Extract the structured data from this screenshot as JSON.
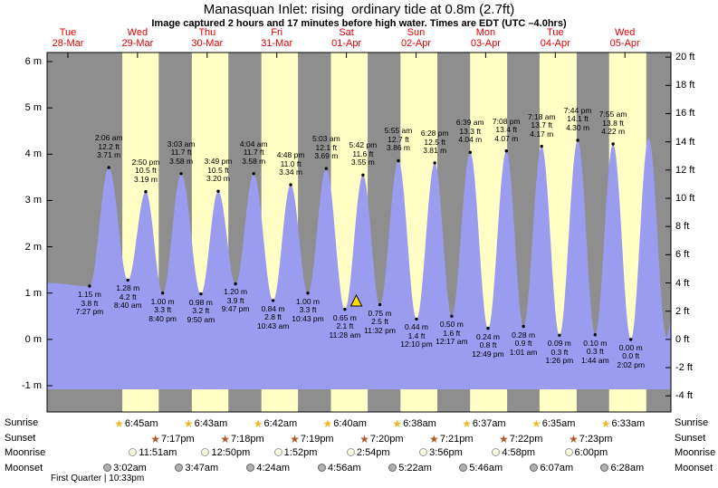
{
  "header": {
    "title": "Manasquan Inlet: rising  ordinary tide at 0.8m (2.7ft)",
    "subtitle": "Image captured 2 hours and 17 minutes before high water. Times are EDT (UTC –4.0hrs)"
  },
  "days": [
    {
      "name": "Tue",
      "date": "28-Mar"
    },
    {
      "name": "Wed",
      "date": "29-Mar"
    },
    {
      "name": "Thu",
      "date": "30-Mar"
    },
    {
      "name": "Fri",
      "date": "31-Mar"
    },
    {
      "name": "Sat",
      "date": "01-Apr"
    },
    {
      "name": "Sun",
      "date": "02-Apr"
    },
    {
      "name": "Mon",
      "date": "03-Apr"
    },
    {
      "name": "Tue",
      "date": "04-Apr"
    },
    {
      "name": "Wed",
      "date": "05-Apr"
    }
  ],
  "axes": {
    "left_ticks": [
      "6 m",
      "5 m",
      "4 m",
      "3 m",
      "2 m",
      "1 m",
      "0 m",
      "-1 m"
    ],
    "right_ticks": [
      "20 ft",
      "18 ft",
      "16 ft",
      "14 ft",
      "12 ft",
      "10 ft",
      "8 ft",
      "6 ft",
      "4 ft",
      "2 ft",
      "0 ft",
      "-2 ft",
      "-4 ft"
    ]
  },
  "chart_data": {
    "type": "area",
    "title": "Manasquan Inlet tide height curve",
    "x_unit": "days (noon-centered ticks)",
    "y_left": {
      "unit": "m",
      "ticks": [
        6,
        5,
        4,
        3,
        2,
        1,
        0,
        -1
      ]
    },
    "y_right": {
      "unit": "ft",
      "ticks": [
        20,
        18,
        16,
        14,
        12,
        10,
        8,
        6,
        4,
        2,
        0,
        -2,
        -4
      ]
    },
    "tide_events": [
      {
        "day": 0,
        "time": "7:27 pm",
        "ft": "3.8 ft",
        "m": "1.15 m",
        "type": "low"
      },
      {
        "day": 1,
        "time": "2:06 am",
        "ft": "12.2 ft",
        "m": "3.71 m",
        "type": "high"
      },
      {
        "day": 1,
        "time": "8:40 am",
        "ft": "4.2 ft",
        "m": "1.28 m",
        "type": "low"
      },
      {
        "day": 1,
        "time": "2:50 pm",
        "ft": "10.5 ft",
        "m": "3.19 m",
        "type": "high"
      },
      {
        "day": 1,
        "time": "8:40 pm",
        "ft": "3.3 ft",
        "m": "1.00 m",
        "type": "low"
      },
      {
        "day": 2,
        "time": "3:03 am",
        "ft": "11.7 ft",
        "m": "3.58 m",
        "type": "high"
      },
      {
        "day": 2,
        "time": "9:50 am",
        "ft": "3.2 ft",
        "m": "0.98 m",
        "type": "low"
      },
      {
        "day": 2,
        "time": "3:49 pm",
        "ft": "10.5 ft",
        "m": "3.20 m",
        "type": "high"
      },
      {
        "day": 2,
        "time": "9:47 pm",
        "ft": "3.9 ft",
        "m": "1.20 m",
        "type": "low"
      },
      {
        "day": 3,
        "time": "4:04 am",
        "ft": "11.7 ft",
        "m": "3.58 m",
        "type": "high"
      },
      {
        "day": 3,
        "time": "10:43 am",
        "ft": "2.8 ft",
        "m": "0.84 m",
        "type": "low"
      },
      {
        "day": 3,
        "time": "4:48 pm",
        "ft": "11.0 ft",
        "m": "3.34 m",
        "type": "high"
      },
      {
        "day": 3,
        "time": "10:43 pm",
        "ft": "3.3 ft",
        "m": "1.00 m",
        "type": "low"
      },
      {
        "day": 4,
        "time": "5:03 am",
        "ft": "12.1 ft",
        "m": "3.69 m",
        "type": "high"
      },
      {
        "day": 4,
        "time": "11:28 am",
        "ft": "2.1 ft",
        "m": "0.65 m",
        "type": "low"
      },
      {
        "day": 4,
        "time": "5:42 pm",
        "ft": "11.6 ft",
        "m": "3.55 m",
        "type": "high"
      },
      {
        "day": 4,
        "time": "11:32 pm",
        "ft": "2.5 ft",
        "m": "0.75 m",
        "type": "low"
      },
      {
        "day": 5,
        "time": "5:55 am",
        "ft": "12.7 ft",
        "m": "3.86 m",
        "type": "high"
      },
      {
        "day": 5,
        "time": "12:10 pm",
        "ft": "1.4 ft",
        "m": "0.44 m",
        "type": "low"
      },
      {
        "day": 5,
        "time": "6:28 pm",
        "ft": "12.5 ft",
        "m": "3.81 m",
        "type": "high"
      },
      {
        "day": 6,
        "time": "12:17 am",
        "ft": "1.6 ft",
        "m": "0.50 m",
        "type": "low"
      },
      {
        "day": 6,
        "time": "6:39 am",
        "ft": "13.3 ft",
        "m": "4.04 m",
        "type": "high"
      },
      {
        "day": 6,
        "time": "12:49 pm",
        "ft": "0.8 ft",
        "m": "0.24 m",
        "type": "low"
      },
      {
        "day": 6,
        "time": "7:08 pm",
        "ft": "13.4 ft",
        "m": "4.07 m",
        "type": "high"
      },
      {
        "day": 7,
        "time": "1:01 am",
        "ft": "0.9 ft",
        "m": "0.28 m",
        "type": "low"
      },
      {
        "day": 7,
        "time": "7:18 am",
        "ft": "13.7 ft",
        "m": "4.17 m",
        "type": "high"
      },
      {
        "day": 7,
        "time": "1:26 pm",
        "ft": "0.3 ft",
        "m": "0.09 m",
        "type": "low"
      },
      {
        "day": 7,
        "time": "7:44 pm",
        "ft": "14.1 ft",
        "m": "4.30 m",
        "type": "high"
      },
      {
        "day": 8,
        "time": "1:44 am",
        "ft": "0.3 ft",
        "m": "0.10 m",
        "type": "low"
      },
      {
        "day": 8,
        "time": "7:55 am",
        "ft": "13.8 ft",
        "m": "4.22 m",
        "type": "high"
      },
      {
        "day": 8,
        "time": "2:02 pm",
        "ft": "0.0 ft",
        "m": "0.00 m",
        "type": "low"
      }
    ],
    "edge_anchors": [
      {
        "day": 0,
        "time": "4:50 am",
        "height_m": 1.22
      },
      {
        "day": 8,
        "time": "8:12 pm",
        "height_m": 4.35
      },
      {
        "day": 9,
        "time": "2:20 am",
        "height_m": 0.05
      },
      {
        "day": 9,
        "time": "8:30 am",
        "height_m": 4.2
      }
    ],
    "capture_marker": {
      "day": 4,
      "time": "3:25 pm",
      "height_m": 0.8
    }
  },
  "almanac": {
    "row_labels": [
      "Sunrise",
      "Sunset",
      "Moonrise",
      "Moonset"
    ],
    "sunrise": [
      "6:45am",
      "6:43am",
      "6:42am",
      "6:40am",
      "6:38am",
      "6:37am",
      "6:35am",
      "6:33am"
    ],
    "sunset": [
      "7:17pm",
      "7:18pm",
      "7:19pm",
      "7:20pm",
      "7:21pm",
      "7:22pm",
      "7:23pm"
    ],
    "moonrise": [
      "11:51am",
      "12:50pm",
      "1:52pm",
      "2:54pm",
      "3:56pm",
      "4:58pm",
      "6:00pm"
    ],
    "moonset": [
      "3:02am",
      "3:47am",
      "4:24am",
      "4:56am",
      "5:22am",
      "5:46am",
      "6:07am",
      "6:28am"
    ],
    "moon_phase": "First Quarter | 10:33pm"
  },
  "colors": {
    "night_band": "#8e8e8e",
    "day_band": "#ffffc6",
    "tide_fill": "#9b9bf0",
    "day_label": "#e10000",
    "marker_fill": "#ffdf00",
    "sunrise_star": "#edba2a",
    "sunset_star": "#b05a2a",
    "moonrise_fill": "#ffffe4",
    "moonset_fill": "#b0b0b0"
  }
}
